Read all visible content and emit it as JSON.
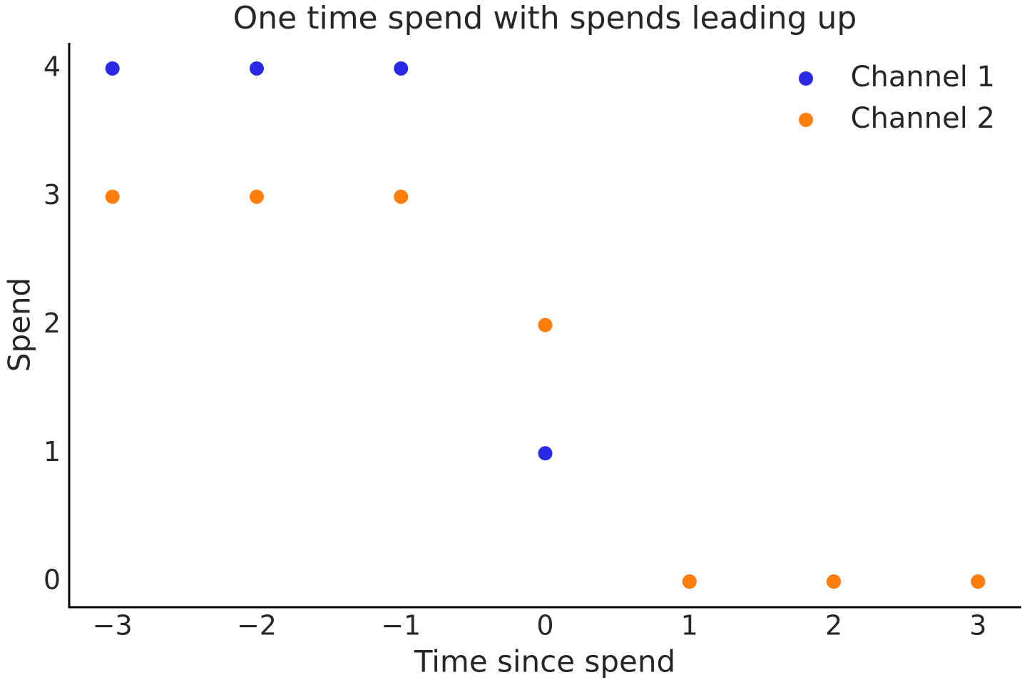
{
  "chart_data": {
    "type": "scatter",
    "title": "One time spend with spends leading up",
    "x_label": "Time since spend",
    "y_label": "Spend",
    "x": [
      -3,
      -2,
      -1,
      0,
      1,
      2,
      3
    ],
    "series": [
      {
        "name": "Channel 1",
        "color": "#2a2ae6",
        "values": [
          4,
          4,
          4,
          1,
          0,
          0,
          0
        ]
      },
      {
        "name": "Channel 2",
        "color": "#ff7f0e",
        "values": [
          3,
          3,
          3,
          2,
          0,
          0,
          0
        ]
      }
    ],
    "xlim": [
      -3.3,
      3.3
    ],
    "ylim": [
      -0.2,
      4.2
    ],
    "xticks": [
      {
        "value": -3,
        "label": "−3"
      },
      {
        "value": -2,
        "label": "−2"
      },
      {
        "value": -1,
        "label": "−1"
      },
      0,
      1,
      2,
      3
    ],
    "yticks": [
      0,
      1,
      2,
      3,
      4
    ],
    "legend": "upper right",
    "grid": false
  }
}
